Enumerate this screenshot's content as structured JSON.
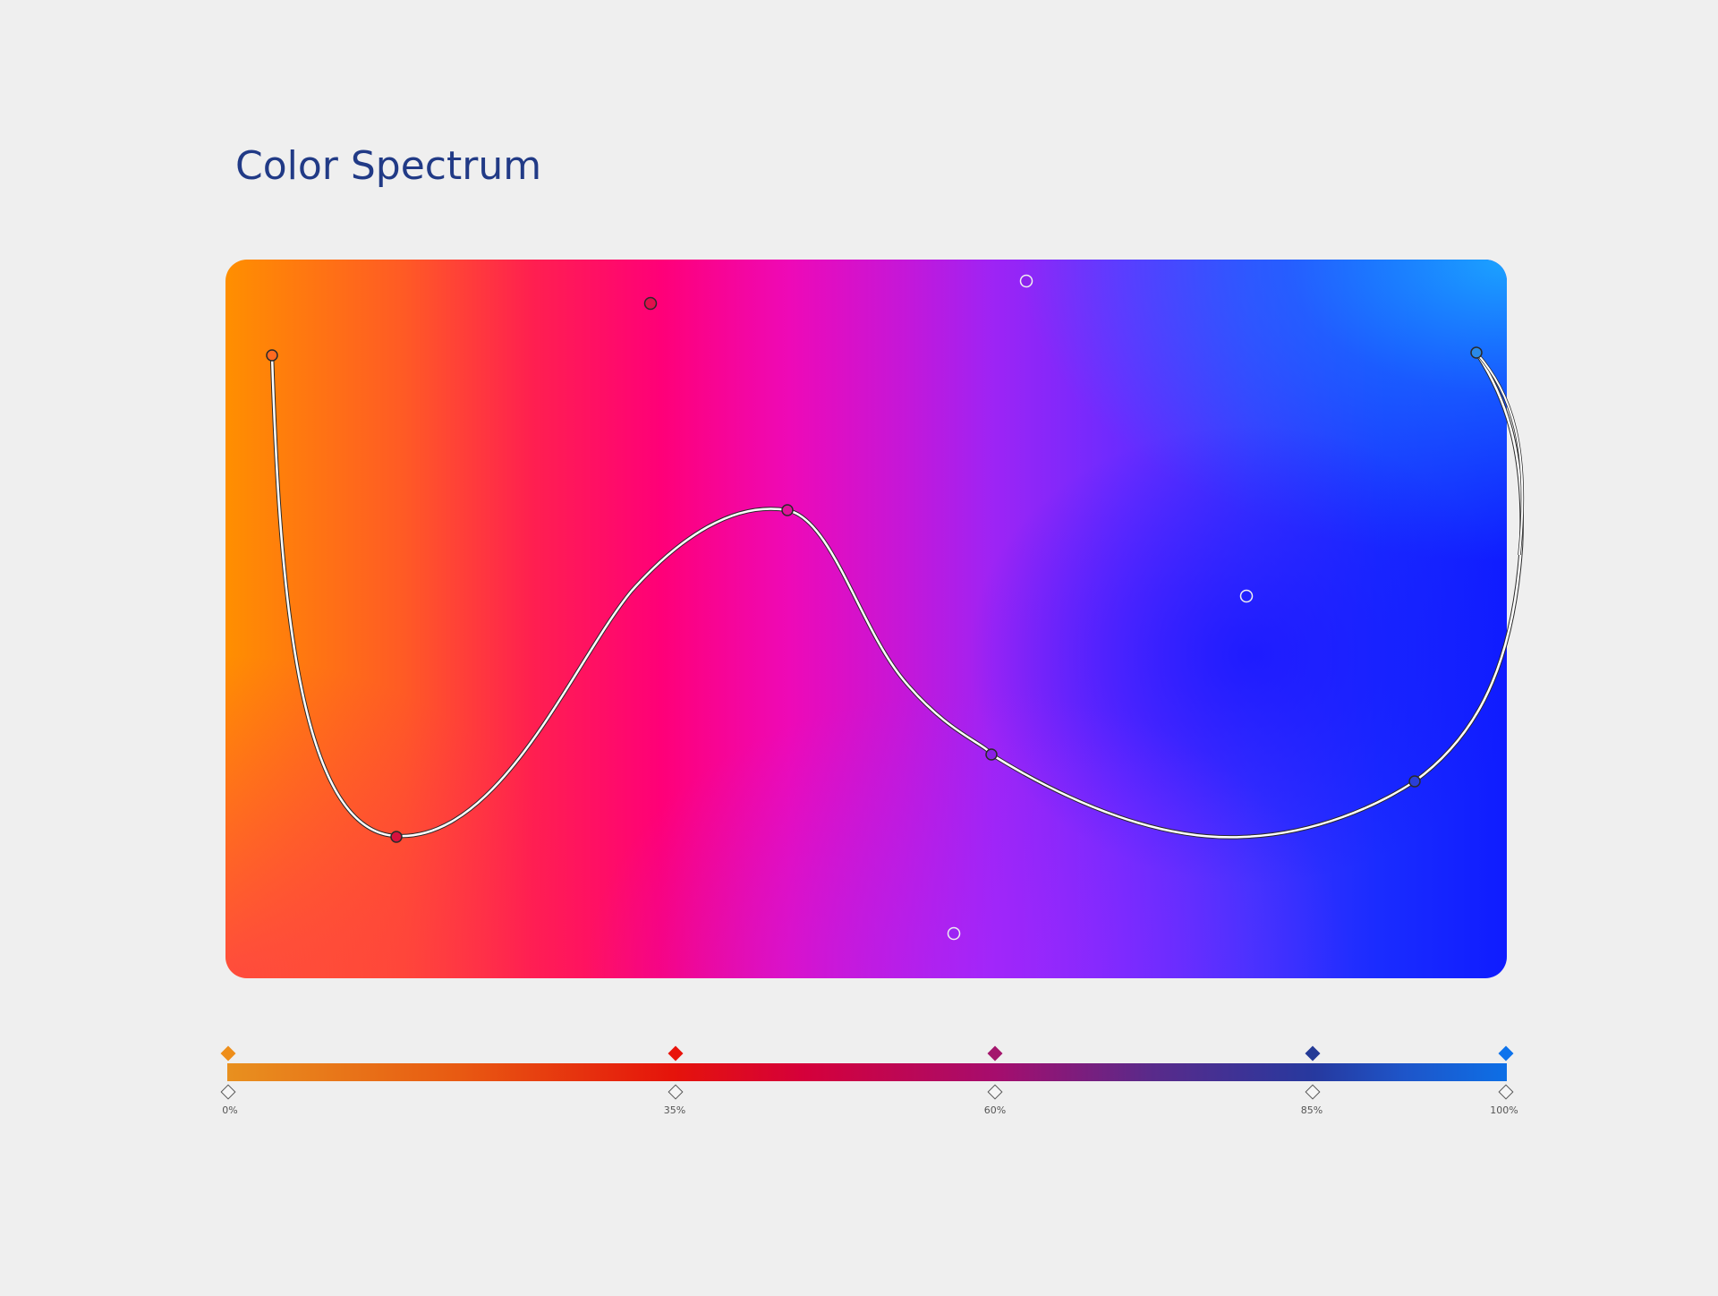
{
  "title": "Color Spectrum",
  "colors": {
    "title": "#213a86",
    "background": "#efefef",
    "curve": "#ffffff"
  },
  "gradient_stops": [
    {
      "label": "0%",
      "position": 0,
      "color": "#ee8e1a"
    },
    {
      "label": "35%",
      "position": 35,
      "color": "#e9130b"
    },
    {
      "label": "60%",
      "position": 60,
      "color": "#a4166d"
    },
    {
      "label": "85%",
      "position": 85,
      "color": "#243a96"
    },
    {
      "label": "100%",
      "position": 100,
      "color": "#0d73ec"
    }
  ]
}
